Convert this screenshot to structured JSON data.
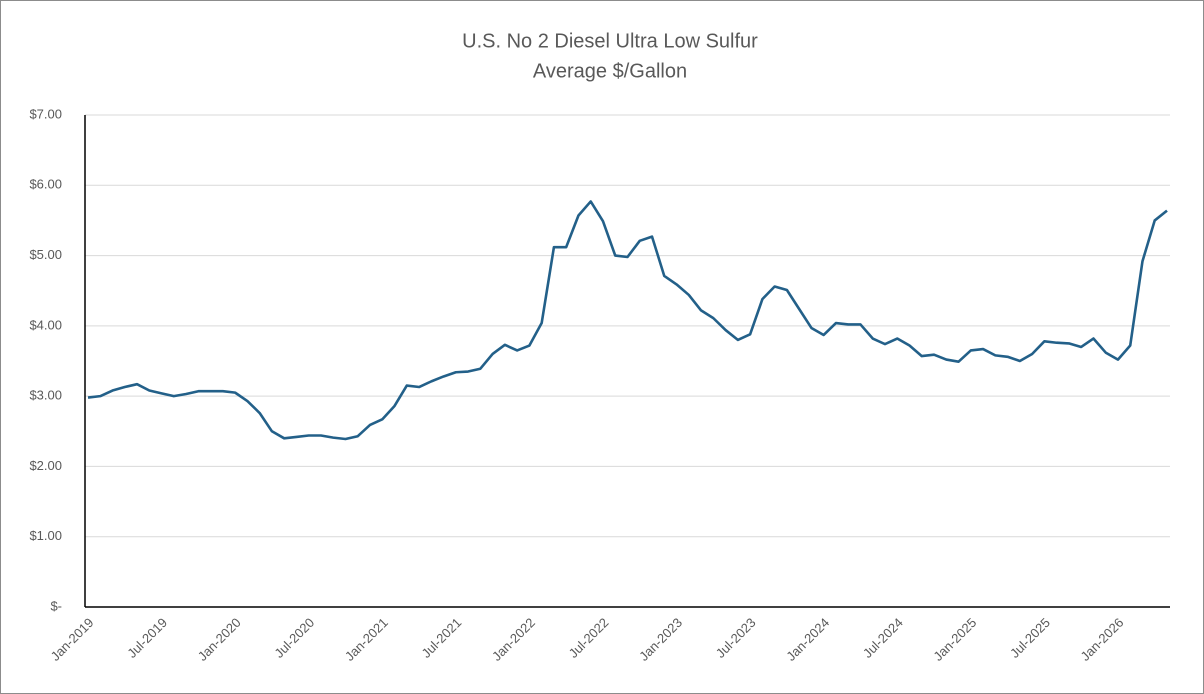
{
  "chart_data": {
    "type": "line",
    "title": "U.S. No 2 Diesel Ultra Low Sulfur",
    "subtitle": "Average $/Gallon",
    "categories": [
      "Jan-2019",
      null,
      null,
      null,
      null,
      null,
      "Jul-2019",
      null,
      null,
      null,
      null,
      null,
      "Jan-2020",
      null,
      null,
      null,
      null,
      null,
      "Jul-2020",
      null,
      null,
      null,
      null,
      null,
      "Jan-2021",
      null,
      null,
      null,
      null,
      null,
      "Jul-2021",
      null,
      null,
      null,
      null,
      null,
      "Jan-2022",
      null,
      null,
      null,
      null,
      null,
      "Jul-2022",
      null,
      null,
      null,
      null,
      null,
      "Jan-2023",
      null,
      null,
      null,
      null,
      null,
      "Jul-2023",
      null,
      null,
      null,
      null,
      null,
      "Jan-2024",
      null,
      null,
      null,
      null,
      null,
      "Jul-2024",
      null,
      null,
      null,
      null,
      null,
      "Jan-2025",
      null,
      null,
      null,
      null,
      null,
      "Jul-2025",
      null,
      null,
      null,
      null,
      null,
      "Jan-2026",
      null,
      null,
      null,
      null
    ],
    "series": [
      {
        "name": "U.S. No 2 Diesel Ultra Low Sulfur",
        "color": "#236089",
        "values": [
          2.98,
          3.0,
          3.08,
          3.13,
          3.17,
          3.08,
          3.04,
          3.0,
          3.03,
          3.07,
          3.07,
          3.07,
          3.05,
          2.93,
          2.76,
          2.5,
          2.4,
          2.42,
          2.44,
          2.44,
          2.41,
          2.39,
          2.43,
          2.59,
          2.67,
          2.86,
          3.15,
          3.13,
          3.21,
          3.28,
          3.34,
          3.35,
          3.39,
          3.6,
          3.73,
          3.65,
          3.72,
          4.04,
          5.12,
          5.12,
          5.57,
          5.77,
          5.49,
          5.0,
          4.98,
          5.21,
          5.27,
          4.71,
          4.59,
          4.44,
          4.22,
          4.11,
          3.94,
          3.8,
          3.88,
          4.38,
          4.56,
          4.51,
          4.24,
          3.97,
          3.87,
          4.04,
          4.02,
          4.02,
          3.82,
          3.74,
          3.82,
          3.72,
          3.57,
          3.59,
          3.52,
          3.49,
          3.65,
          3.67,
          3.58,
          3.56,
          3.5,
          3.6,
          3.78,
          3.76,
          3.75,
          3.7,
          3.82,
          3.62,
          3.52,
          3.72,
          4.92,
          5.5,
          5.64
        ]
      }
    ],
    "ylim": [
      0,
      7
    ],
    "yticks": [
      {
        "value": 0,
        "label": "$-"
      },
      {
        "value": 1,
        "label": "$1.00"
      },
      {
        "value": 2,
        "label": "$2.00"
      },
      {
        "value": 3,
        "label": "$3.00"
      },
      {
        "value": 4,
        "label": "$4.00"
      },
      {
        "value": 5,
        "label": "$5.00"
      },
      {
        "value": 6,
        "label": "$6.00"
      },
      {
        "value": 7,
        "label": "$7.00"
      }
    ],
    "grid": true
  }
}
